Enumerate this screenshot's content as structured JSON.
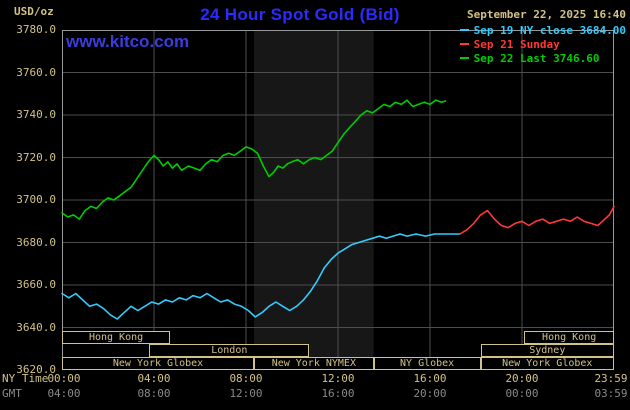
{
  "header": {
    "units_label": "USD/oz",
    "title": "24 Hour Spot Gold (Bid)",
    "datetime": "September 22, 2025 16:40",
    "watermark": "www.kitco.com"
  },
  "legend": {
    "items": [
      {
        "id": "sep19",
        "label": "Sep 19 NY close 3684.00",
        "color": "#33ccff"
      },
      {
        "id": "sep21",
        "label": "Sep 21 Sunday",
        "color": "#ff3838"
      },
      {
        "id": "sep22",
        "label": "Sep 22 Last 3746.60",
        "color": "#00cc00"
      }
    ]
  },
  "axes": {
    "ny_caption": "NY Time",
    "gmt_caption": "GMT",
    "x_tick_hours": [
      0,
      4,
      8,
      12,
      16,
      20,
      23.98
    ],
    "x_ticks_ny": [
      "00:00",
      "04:00",
      "08:00",
      "12:00",
      "16:00",
      "20:00",
      "23:59"
    ],
    "x_ticks_gmt": [
      "04:00",
      "08:00",
      "12:00",
      "16:00",
      "20:00",
      "00:00",
      "03:59"
    ],
    "y_ticks": [
      3620,
      3640,
      3660,
      3680,
      3700,
      3720,
      3740,
      3760,
      3780
    ]
  },
  "sessions": [
    {
      "id": "hong-kong-early",
      "row": 0,
      "start": 0,
      "end": 4.7,
      "label": "Hong Kong"
    },
    {
      "id": "hong-kong-late",
      "row": 0,
      "start": 20.1,
      "end": 24,
      "label": "Hong Kong"
    },
    {
      "id": "london",
      "row": 1,
      "start": 3.8,
      "end": 10.75,
      "label": "London"
    },
    {
      "id": "sydney",
      "row": 1,
      "start": 18.2,
      "end": 24,
      "label": "Sydney"
    },
    {
      "id": "new-york-globex-early",
      "row": 2,
      "start": 0,
      "end": 8.35,
      "label": "New York Globex"
    },
    {
      "id": "new-york-nymex",
      "row": 2,
      "start": 8.35,
      "end": 13.55,
      "label": "New York NYMEX"
    },
    {
      "id": "ny-globex",
      "row": 2,
      "start": 13.55,
      "end": 18.2,
      "label": "NY Globex"
    },
    {
      "id": "new-york-globex-late",
      "row": 2,
      "start": 18.2,
      "end": 24,
      "label": "New York Globex"
    }
  ],
  "theme": {
    "background": "#000000",
    "band": "#171717",
    "grid": "#4d4d4d",
    "border": "#999999",
    "tan": "#d3c286",
    "gray": "#8a8a8a",
    "title_blue": "#2b2bff",
    "watermark_blue": "#3c3cdd"
  },
  "chart_data": {
    "type": "line",
    "title": "24 Hour Spot Gold (Bid)",
    "xlabel": "NY Time",
    "ylabel": "USD/oz",
    "xlim_hours": [
      0,
      24
    ],
    "ylim": [
      3620,
      3780
    ],
    "grid": true,
    "legend_position": "top-right",
    "nymex_band_hours": [
      8.35,
      13.55
    ],
    "series": [
      {
        "id": "sep19",
        "name": "Sep 19 NY close 3684.00",
        "color": "#33ccff",
        "close_value": 3684.0,
        "x": [
          0,
          0.3,
          0.6,
          0.9,
          1.2,
          1.5,
          1.8,
          2.1,
          2.4,
          2.7,
          3.0,
          3.3,
          3.6,
          3.9,
          4.2,
          4.5,
          4.8,
          5.1,
          5.4,
          5.7,
          6.0,
          6.3,
          6.6,
          6.9,
          7.2,
          7.5,
          7.8,
          8.1,
          8.4,
          8.7,
          9.0,
          9.3,
          9.6,
          9.9,
          10.2,
          10.5,
          10.8,
          11.1,
          11.4,
          11.7,
          12.0,
          12.3,
          12.6,
          12.9,
          13.2,
          13.5,
          13.8,
          14.1,
          14.4,
          14.7,
          15.0,
          15.4,
          15.8,
          16.2,
          16.6,
          17.0,
          17.3
        ],
        "y": [
          3656,
          3654,
          3656,
          3653,
          3650,
          3651,
          3649,
          3646,
          3644,
          3647,
          3650,
          3648,
          3650,
          3652,
          3651,
          3653,
          3652,
          3654,
          3653,
          3655,
          3654,
          3656,
          3654,
          3652,
          3653,
          3651,
          3650,
          3648,
          3645,
          3647,
          3650,
          3652,
          3650,
          3648,
          3650,
          3653,
          3657,
          3662,
          3668,
          3672,
          3675,
          3677,
          3679,
          3680,
          3681,
          3682,
          3683,
          3682,
          3683,
          3684,
          3683,
          3684,
          3683,
          3684,
          3684,
          3684,
          3684
        ]
      },
      {
        "id": "sep21",
        "name": "Sep 21 Sunday",
        "color": "#ff3838",
        "x": [
          17.3,
          17.6,
          17.9,
          18.2,
          18.5,
          18.8,
          19.1,
          19.4,
          19.7,
          20.0,
          20.3,
          20.6,
          20.9,
          21.2,
          21.5,
          21.8,
          22.1,
          22.4,
          22.7,
          23.0,
          23.3,
          23.6,
          23.8,
          24.0
        ],
        "y": [
          3684,
          3686,
          3689,
          3693,
          3695,
          3691,
          3688,
          3687,
          3689,
          3690,
          3688,
          3690,
          3691,
          3689,
          3690,
          3691,
          3690,
          3692,
          3690,
          3689,
          3688,
          3691,
          3693,
          3697
        ]
      },
      {
        "id": "sep22",
        "name": "Sep 22 Last 3746.60",
        "color": "#00cc00",
        "last_value": 3746.6,
        "x": [
          0,
          0.25,
          0.5,
          0.75,
          1.0,
          1.25,
          1.5,
          1.75,
          2.0,
          2.25,
          2.5,
          2.75,
          3.0,
          3.25,
          3.5,
          3.75,
          4.0,
          4.2,
          4.4,
          4.6,
          4.8,
          5.0,
          5.2,
          5.5,
          5.75,
          6.0,
          6.25,
          6.5,
          6.75,
          7.0,
          7.25,
          7.5,
          7.75,
          8.0,
          8.25,
          8.5,
          8.75,
          9.0,
          9.2,
          9.4,
          9.6,
          9.8,
          10.0,
          10.25,
          10.5,
          10.75,
          11.0,
          11.25,
          11.5,
          11.75,
          12.0,
          12.25,
          12.5,
          12.75,
          13.0,
          13.25,
          13.5,
          13.75,
          14.0,
          14.25,
          14.5,
          14.75,
          15.0,
          15.25,
          15.5,
          15.75,
          16.0,
          16.25,
          16.5,
          16.67
        ],
        "y": [
          3694,
          3692,
          3693,
          3691,
          3695,
          3697,
          3696,
          3699,
          3701,
          3700,
          3702,
          3704,
          3706,
          3710,
          3714,
          3718,
          3721,
          3719,
          3716,
          3718,
          3715,
          3717,
          3714,
          3716,
          3715,
          3714,
          3717,
          3719,
          3718,
          3721,
          3722,
          3721,
          3723,
          3725,
          3724,
          3722,
          3716,
          3711,
          3713,
          3716,
          3715,
          3717,
          3718,
          3719,
          3717,
          3719,
          3720,
          3719,
          3721,
          3723,
          3727,
          3731,
          3734,
          3737,
          3740,
          3742,
          3741,
          3743,
          3745,
          3744,
          3746,
          3745,
          3747,
          3744,
          3745,
          3746,
          3745,
          3747,
          3746,
          3746.6
        ]
      }
    ]
  }
}
